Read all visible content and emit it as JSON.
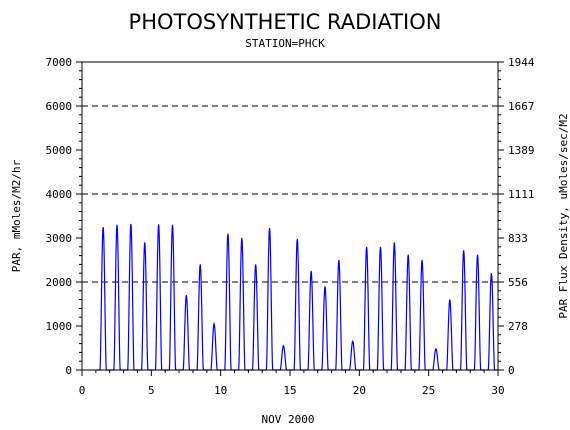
{
  "chart_data": {
    "type": "line",
    "title": "PHOTOSYNTHETIC RADIATION",
    "subtitle": "STATION=PHCK",
    "xlabel": "NOV 2000",
    "ylabel": "PAR, mMoles/M2/hr",
    "y2label": "PAR Flux Density, uMoles/sec/M2",
    "xlim": [
      0,
      30
    ],
    "ylim": [
      0,
      7000
    ],
    "xticks": [
      "0",
      "5",
      "10",
      "15",
      "20",
      "25",
      "30"
    ],
    "yticks": [
      "0",
      "1000",
      "2000",
      "3000",
      "4000",
      "5000",
      "6000",
      "7000"
    ],
    "y2ticks": [
      "0",
      "278",
      "556",
      "833",
      "1111",
      "1389",
      "1667",
      "1944"
    ],
    "gridlines_y": [
      2000,
      4000,
      6000
    ],
    "grid": "dashed horizontal at 2000, 4000, 6000",
    "line_color": "#0000ff",
    "series": [
      {
        "daily_peaks": [
          {
            "day": 1,
            "peak": 3250
          },
          {
            "day": 2,
            "peak": 3300
          },
          {
            "day": 3,
            "peak": 3320
          },
          {
            "day": 4,
            "peak": 2900
          },
          {
            "day": 5,
            "peak": 3310
          },
          {
            "day": 6,
            "peak": 3300
          },
          {
            "day": 7,
            "peak": 1700
          },
          {
            "day": 8,
            "peak": 2400
          },
          {
            "day": 9,
            "peak": 1050
          },
          {
            "day": 10,
            "peak": 3100
          },
          {
            "day": 11,
            "peak": 3000
          },
          {
            "day": 12,
            "peak": 2400
          },
          {
            "day": 13,
            "peak": 3230
          },
          {
            "day": 14,
            "peak": 550
          },
          {
            "day": 15,
            "peak": 2980
          },
          {
            "day": 16,
            "peak": 2250
          },
          {
            "day": 17,
            "peak": 1900
          },
          {
            "day": 18,
            "peak": 2500
          },
          {
            "day": 19,
            "peak": 650
          },
          {
            "day": 20,
            "peak": 2800
          },
          {
            "day": 21,
            "peak": 2800
          },
          {
            "day": 22,
            "peak": 2900
          },
          {
            "day": 23,
            "peak": 2620
          },
          {
            "day": 24,
            "peak": 2500
          },
          {
            "day": 25,
            "peak": 480
          },
          {
            "day": 26,
            "peak": 1600
          },
          {
            "day": 27,
            "peak": 2720
          },
          {
            "day": 28,
            "peak": 2620
          },
          {
            "day": 29,
            "peak": 2200
          }
        ]
      }
    ]
  }
}
